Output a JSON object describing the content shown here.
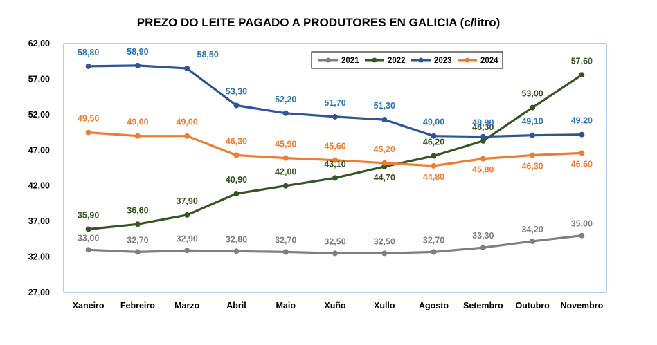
{
  "chart_data": {
    "type": "line",
    "title": "PREZO DO LEITE PAGADO A PRODUTORES EN GALICIA (c/litro)",
    "categories": [
      "Xaneiro",
      "Febreiro",
      "Marzo",
      "Abril",
      "Maio",
      "Xuño",
      "Xullo",
      "Agosto",
      "Setembro",
      "Outubro",
      "Novembro"
    ],
    "ylim": [
      27,
      62
    ],
    "yticks": [
      "27,00",
      "32,00",
      "37,00",
      "42,00",
      "47,00",
      "52,00",
      "57,00",
      "62,00"
    ],
    "grid": false,
    "legend_position": "top-right",
    "series": [
      {
        "name": "2021",
        "color": "#7f7f7f",
        "values": [
          33.0,
          32.7,
          32.9,
          32.8,
          32.7,
          32.5,
          32.5,
          32.7,
          33.3,
          34.2,
          35.0
        ],
        "labels": [
          "33,00",
          "32,70",
          "32,90",
          "32,80",
          "32,70",
          "32,50",
          "32,50",
          "32,70",
          "33,30",
          "34,20",
          "35,00"
        ]
      },
      {
        "name": "2022",
        "color": "#375623",
        "values": [
          35.9,
          36.6,
          37.9,
          40.9,
          42.0,
          43.1,
          44.7,
          46.2,
          48.3,
          53.0,
          57.6
        ],
        "labels": [
          "35,90",
          "36,60",
          "37,90",
          "40,90",
          "42,00",
          "43,10",
          "44,70",
          "46,20",
          "48,30",
          "53,00",
          "57,60"
        ]
      },
      {
        "name": "2023",
        "color": "#2f5597",
        "label_color": "#2e75b6",
        "values": [
          58.8,
          58.9,
          58.5,
          53.3,
          52.2,
          51.7,
          51.3,
          49.0,
          48.9,
          49.1,
          49.2
        ],
        "labels": [
          "58,80",
          "58,90",
          "58,50",
          "53,30",
          "52,20",
          "51,70",
          "51,30",
          "49,00",
          "48,90",
          "49,10",
          "49,20"
        ]
      },
      {
        "name": "2024",
        "color": "#ed7d31",
        "values": [
          49.5,
          49.0,
          49.0,
          46.3,
          45.9,
          45.6,
          45.2,
          44.8,
          45.8,
          46.3,
          46.6
        ],
        "labels": [
          "49,50",
          "49,00",
          "49,00",
          "46,30",
          "45,90",
          "45,60",
          "45,20",
          "44,80",
          "45,80",
          "46,30",
          "46,60"
        ]
      }
    ]
  }
}
